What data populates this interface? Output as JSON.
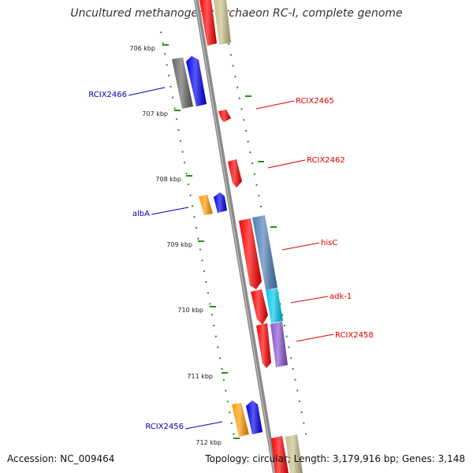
{
  "title": "Uncultured methanogenic archaeon RC-I, complete genome",
  "footer": {
    "accession": "Accession: NC_009464",
    "topology": "Topology: circular; Length: 3,179,916 bp; Genes: 3,148"
  },
  "colors": {
    "backbone": "#888888",
    "tick": "#2e8b22",
    "forward_label": "#dd0000",
    "reverse_label": "#0000bb",
    "red": "#ff0000",
    "blue": "#0000ee",
    "orange": "#ff9900",
    "gray": "#666666",
    "khaki": "#c8bf8a",
    "steelblue": "#4b7fb5",
    "cyan": "#00c8ee",
    "purple": "#8855cc"
  },
  "kbp_labels": [
    "706 kbp",
    "707 kbp",
    "708 kbp",
    "709 kbp",
    "710 kbp",
    "711 kbp",
    "712 kbp"
  ],
  "gene_labels": [
    "RCIX2465",
    "RCIX2462",
    "hisC",
    "adk-1",
    "RCIX2458",
    "RCIX2466",
    "albA",
    "RCIX2456"
  ]
}
